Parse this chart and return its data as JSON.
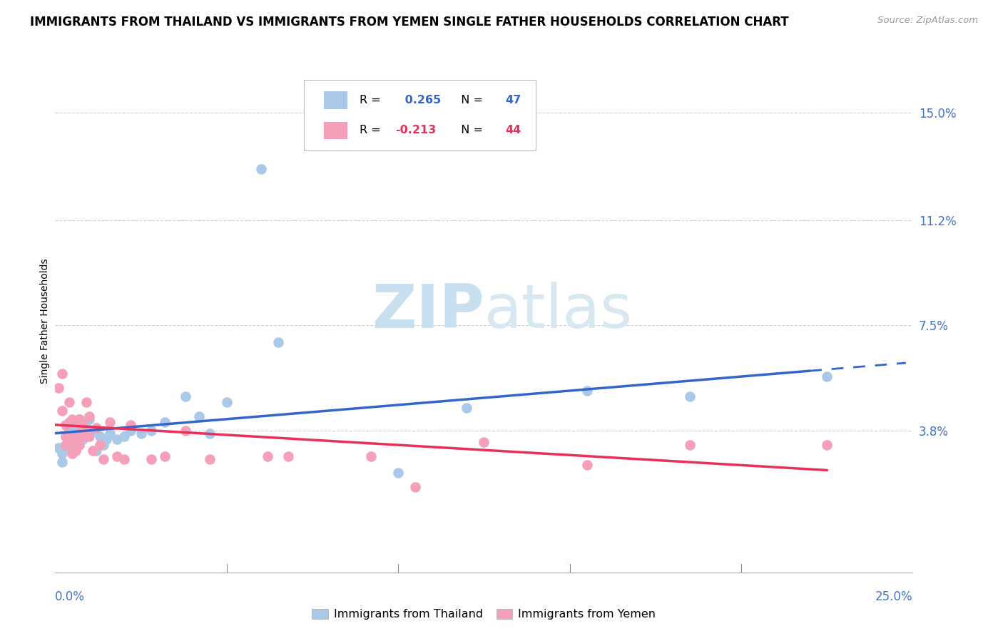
{
  "title": "IMMIGRANTS FROM THAILAND VS IMMIGRANTS FROM YEMEN SINGLE FATHER HOUSEHOLDS CORRELATION CHART",
  "source": "Source: ZipAtlas.com",
  "ylabel": "Single Father Households",
  "ytick_labels": [
    "15.0%",
    "11.2%",
    "7.5%",
    "3.8%"
  ],
  "ytick_values": [
    0.15,
    0.112,
    0.075,
    0.038
  ],
  "xlim": [
    0.0,
    0.25
  ],
  "ylim": [
    -0.012,
    0.165
  ],
  "thailand_color": "#aac8e8",
  "yemen_color": "#f5a0b8",
  "trendline_thailand_color": "#3366cc",
  "trendline_yemen_color": "#e8305a",
  "R_thailand": 0.265,
  "N_thailand": 47,
  "R_yemen": -0.213,
  "N_yemen": 44,
  "watermark_text": "ZIPatlas",
  "watermark_color": "#d8e8f5",
  "bg_color": "#ffffff",
  "grid_color": "#d0d0d0",
  "axis_label_color": "#4472c4",
  "title_fontsize": 12,
  "tick_label_fontsize": 12,
  "ylabel_fontsize": 10,
  "thailand_points": [
    [
      0.001,
      0.032
    ],
    [
      0.002,
      0.03
    ],
    [
      0.002,
      0.027
    ],
    [
      0.003,
      0.033
    ],
    [
      0.003,
      0.036
    ],
    [
      0.003,
      0.04
    ],
    [
      0.004,
      0.034
    ],
    [
      0.004,
      0.038
    ],
    [
      0.004,
      0.032
    ],
    [
      0.005,
      0.035
    ],
    [
      0.005,
      0.039
    ],
    [
      0.005,
      0.037
    ],
    [
      0.006,
      0.041
    ],
    [
      0.006,
      0.036
    ],
    [
      0.006,
      0.034
    ],
    [
      0.007,
      0.038
    ],
    [
      0.007,
      0.042
    ],
    [
      0.007,
      0.033
    ],
    [
      0.008,
      0.035
    ],
    [
      0.008,
      0.04
    ],
    [
      0.009,
      0.041
    ],
    [
      0.009,
      0.036
    ],
    [
      0.01,
      0.037
    ],
    [
      0.01,
      0.042
    ],
    [
      0.011,
      0.038
    ],
    [
      0.012,
      0.031
    ],
    [
      0.013,
      0.036
    ],
    [
      0.014,
      0.033
    ],
    [
      0.015,
      0.035
    ],
    [
      0.016,
      0.037
    ],
    [
      0.018,
      0.035
    ],
    [
      0.02,
      0.036
    ],
    [
      0.022,
      0.038
    ],
    [
      0.025,
      0.037
    ],
    [
      0.028,
      0.038
    ],
    [
      0.032,
      0.041
    ],
    [
      0.038,
      0.05
    ],
    [
      0.042,
      0.043
    ],
    [
      0.045,
      0.037
    ],
    [
      0.05,
      0.048
    ],
    [
      0.065,
      0.069
    ],
    [
      0.1,
      0.023
    ],
    [
      0.12,
      0.046
    ],
    [
      0.155,
      0.052
    ],
    [
      0.185,
      0.05
    ],
    [
      0.225,
      0.057
    ],
    [
      0.06,
      0.13
    ]
  ],
  "yemen_points": [
    [
      0.001,
      0.053
    ],
    [
      0.002,
      0.058
    ],
    [
      0.002,
      0.045
    ],
    [
      0.003,
      0.036
    ],
    [
      0.003,
      0.04
    ],
    [
      0.003,
      0.033
    ],
    [
      0.004,
      0.048
    ],
    [
      0.004,
      0.041
    ],
    [
      0.004,
      0.034
    ],
    [
      0.005,
      0.042
    ],
    [
      0.005,
      0.036
    ],
    [
      0.005,
      0.03
    ],
    [
      0.006,
      0.041
    ],
    [
      0.006,
      0.035
    ],
    [
      0.006,
      0.031
    ],
    [
      0.007,
      0.042
    ],
    [
      0.007,
      0.037
    ],
    [
      0.007,
      0.033
    ],
    [
      0.008,
      0.04
    ],
    [
      0.008,
      0.036
    ],
    [
      0.009,
      0.048
    ],
    [
      0.009,
      0.038
    ],
    [
      0.01,
      0.043
    ],
    [
      0.01,
      0.036
    ],
    [
      0.011,
      0.031
    ],
    [
      0.012,
      0.039
    ],
    [
      0.013,
      0.033
    ],
    [
      0.014,
      0.028
    ],
    [
      0.016,
      0.041
    ],
    [
      0.018,
      0.029
    ],
    [
      0.02,
      0.028
    ],
    [
      0.022,
      0.04
    ],
    [
      0.028,
      0.028
    ],
    [
      0.032,
      0.029
    ],
    [
      0.038,
      0.038
    ],
    [
      0.045,
      0.028
    ],
    [
      0.062,
      0.029
    ],
    [
      0.068,
      0.029
    ],
    [
      0.092,
      0.029
    ],
    [
      0.105,
      0.018
    ],
    [
      0.125,
      0.034
    ],
    [
      0.155,
      0.026
    ],
    [
      0.185,
      0.033
    ],
    [
      0.225,
      0.033
    ]
  ]
}
